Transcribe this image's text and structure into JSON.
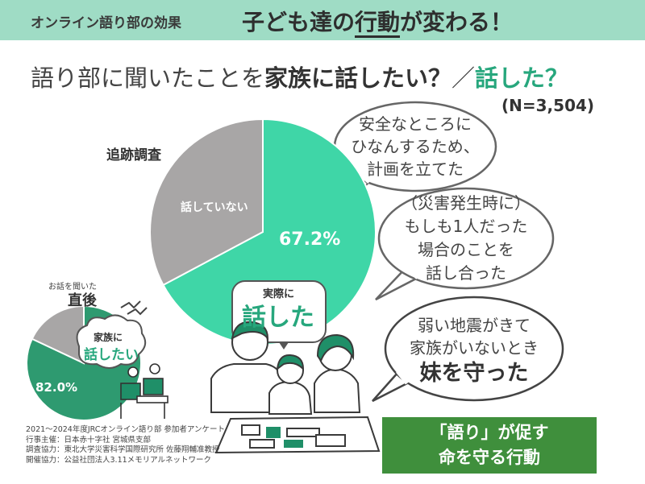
{
  "header": {
    "subtitle": "オンライン語り部の効果",
    "title_pre": "子ども達の",
    "title_emph": "行動",
    "title_post": "が変わる！"
  },
  "question": {
    "part1": "語り部に聞いたことを",
    "part2": "家族に話したい？",
    "separator": "／",
    "part3": "話した？"
  },
  "sample_size": "(N=3,504)",
  "chart_data": [
    {
      "type": "pie",
      "title": "追跡調査",
      "slices": [
        {
          "label": "実際に 話した",
          "value": 67.2,
          "display": "67.2%",
          "color": "#3fd6a7"
        },
        {
          "label": "話していない",
          "value": 32.8,
          "display": "32.8%",
          "color": "#a8a6a6"
        }
      ]
    },
    {
      "type": "pie",
      "title": "直後",
      "caption": "お話を聞いた",
      "slices": [
        {
          "label": "家族に 話したい",
          "value": 82.0,
          "display": "82.0%",
          "color": "#2e9a70"
        },
        {
          "label": "",
          "value": 18.0,
          "display": "",
          "color": "#a8a6a6"
        }
      ]
    }
  ],
  "labels": {
    "large_title": "追跡調査",
    "large_talked_a": "実際に",
    "large_talked_b": "話した",
    "large_not_talked": "話していない",
    "small_caption": "お話を聞いた",
    "small_title": "直後",
    "small_want_a": "家族に",
    "small_want_b": "話したい"
  },
  "bubbles": {
    "b1": [
      "安全なところに",
      "ひなんするため、",
      "計画を立てた"
    ],
    "b2": [
      "（災害発生時に）",
      "もしも1人だった",
      "場合のことを",
      "話し合った"
    ],
    "b3": [
      "弱い地震がきて",
      "家族がいないとき"
    ],
    "b3_emph": "妹を守った"
  },
  "callout": {
    "line1": "「語り」が促す",
    "line2": "命を守る行動"
  },
  "credits": [
    "2021～2024年度JRCオンライン語り部 参加者アンケート",
    "行事主催：日本赤十字社 宮城県支部",
    "調査協力：東北大学災害科学国際研究所 佐藤翔輔准教授",
    "開催協力：公益社団法人3.11メモリアルネットワーク"
  ],
  "colors": {
    "banner": "#9fdcc5",
    "accent_green": "#27a77d",
    "pie_large": "#3fd6a7",
    "pie_small": "#2e9a70",
    "pie_gray": "#a8a6a6",
    "callout_bg": "#3f8f3c"
  }
}
